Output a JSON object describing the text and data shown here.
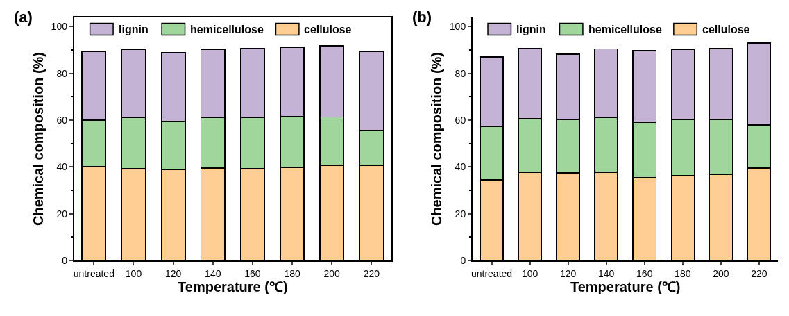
{
  "chart_data": [
    {
      "type": "bar",
      "title": "(a)",
      "xlabel": "Temperature (℃)",
      "ylabel": "Chemical composition (%)",
      "stacked": true,
      "legend": "top",
      "categories": [
        "untreated",
        "100",
        "120",
        "140",
        "160",
        "180",
        "200",
        "220"
      ],
      "ylim": [
        0,
        104
      ],
      "yticks": [
        0,
        20,
        40,
        60,
        80,
        100
      ],
      "series": [
        {
          "name": "cellulose",
          "color": "#fecd92",
          "values": [
            40.2,
            39.4,
            38.9,
            39.6,
            39.4,
            39.8,
            40.7,
            40.5
          ]
        },
        {
          "name": "hemicellulose",
          "color": "#9ed69b",
          "values": [
            19.8,
            21.7,
            20.7,
            21.4,
            21.6,
            21.9,
            20.7,
            15.2
          ]
        },
        {
          "name": "lignin",
          "color": "#c5b3d6",
          "values": [
            29.5,
            29.1,
            29.4,
            29.3,
            29.8,
            29.5,
            30.4,
            33.8
          ]
        }
      ]
    },
    {
      "type": "bar",
      "title": "(b)",
      "xlabel": "Temperature (℃)",
      "ylabel": "Chemical composition (%)",
      "stacked": true,
      "legend": "top",
      "categories": [
        "untreated",
        "100",
        "120",
        "140",
        "160",
        "180",
        "200",
        "220"
      ],
      "ylim": [
        0,
        104
      ],
      "yticks": [
        0,
        20,
        40,
        60,
        80,
        100
      ],
      "series": [
        {
          "name": "cellulose",
          "color": "#fecd92",
          "values": [
            34.5,
            37.6,
            37.5,
            37.8,
            35.3,
            36.2,
            36.7,
            39.5
          ]
        },
        {
          "name": "hemicellulose",
          "color": "#9ed69b",
          "values": [
            22.8,
            23.0,
            22.7,
            23.2,
            23.9,
            24.1,
            23.6,
            18.5
          ]
        },
        {
          "name": "lignin",
          "color": "#c5b3d6",
          "values": [
            29.7,
            30.1,
            28.0,
            29.4,
            30.6,
            29.8,
            30.3,
            35.0
          ]
        }
      ]
    }
  ]
}
